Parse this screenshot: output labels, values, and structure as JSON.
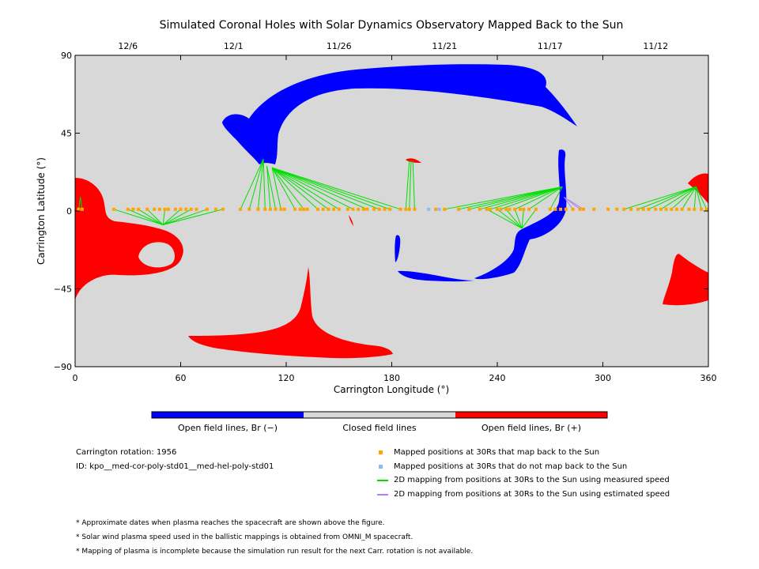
{
  "chart_data": {
    "type": "scatter",
    "title": "Simulated Coronal Holes with Solar Dynamics Observatory Mapped Back to the Sun",
    "xlabel": "Carrington Longitude (°)",
    "ylabel": "Carrington Latitude (°)",
    "xlim": [
      0,
      360
    ],
    "ylim": [
      -90,
      90
    ],
    "xticks": [
      "0",
      "60",
      "120",
      "180",
      "240",
      "300",
      "360"
    ],
    "yticks": [
      "90",
      "45",
      "0",
      "−45",
      "−90"
    ],
    "top_dates": [
      {
        "label": "12/6",
        "lon": 30
      },
      {
        "label": "12/1",
        "lon": 90
      },
      {
        "label": "11/26",
        "lon": 150
      },
      {
        "label": "11/21",
        "lon": 210
      },
      {
        "label": "11/17",
        "lon": 270
      },
      {
        "label": "11/12",
        "lon": 330
      }
    ],
    "background_color": "#d8d8d8",
    "colors": {
      "open_negative": "#0000ff",
      "closed": "#d8d8d8",
      "open_positive": "#ff0000",
      "mapped": "#ffa500",
      "unmapped": "#87bdf0",
      "measured_speed": "#00e000",
      "estimated_speed": "#b07ff0"
    },
    "series": [
      {
        "name": "Mapped positions at 30Rs that map back to the Sun",
        "lon": [
          2,
          4,
          22,
          30,
          33,
          36,
          41,
          45,
          48,
          51,
          53,
          57,
          60,
          63,
          66,
          69,
          75,
          80,
          84,
          94,
          99,
          104,
          108,
          111,
          114,
          117,
          119,
          125,
          128,
          130,
          132,
          138,
          141,
          144,
          147,
          150,
          155,
          158,
          161,
          164,
          166,
          170,
          173,
          176,
          179,
          185,
          188,
          190,
          193,
          205,
          210,
          218,
          224,
          230,
          234,
          236,
          240,
          242,
          245,
          247,
          250,
          253,
          255,
          258,
          262,
          270,
          273,
          276,
          279,
          283,
          287,
          289,
          295,
          303,
          308,
          312,
          316,
          320,
          323,
          326,
          330,
          333,
          336,
          339,
          342,
          345,
          349,
          352,
          356,
          359
        ],
        "lat": [
          1,
          1,
          1,
          1,
          1,
          1,
          1,
          1,
          1,
          1,
          1,
          1,
          1,
          1,
          1,
          1,
          1,
          1,
          1,
          1,
          1,
          1,
          1,
          1,
          1,
          1,
          1,
          1,
          1,
          1,
          1,
          1,
          1,
          1,
          1,
          1,
          1,
          1,
          1,
          1,
          1,
          1,
          1,
          1,
          1,
          1,
          1,
          1,
          1,
          1,
          1,
          1,
          1,
          1,
          1,
          1,
          1,
          1,
          1,
          1,
          1,
          1,
          1,
          1,
          1,
          1,
          1,
          1,
          1,
          1,
          1,
          1,
          1,
          1,
          1,
          1,
          1,
          1,
          1,
          1,
          1,
          1,
          1,
          1,
          1,
          1,
          1,
          1,
          1,
          1
        ]
      },
      {
        "name": "Mapped positions at 30Rs that do not map back to the Sun",
        "lon": [
          201,
          207
        ],
        "lat": [
          1,
          1
        ]
      },
      {
        "name": "2D mapping from positions at 30Rs to the Sun using measured speed",
        "segments": [
          [
            2,
            1,
            3,
            8
          ],
          [
            4,
            1,
            3,
            8
          ],
          [
            22,
            1,
            50,
            -8
          ],
          [
            30,
            1,
            50,
            -8
          ],
          [
            36,
            1,
            50,
            -8
          ],
          [
            41,
            1,
            50,
            -8
          ],
          [
            51,
            1,
            50,
            -8
          ],
          [
            60,
            1,
            50,
            -8
          ],
          [
            66,
            1,
            50,
            -8
          ],
          [
            75,
            1,
            50,
            -8
          ],
          [
            84,
            1,
            50,
            -8
          ],
          [
            94,
            1,
            107,
            30
          ],
          [
            99,
            1,
            107,
            30
          ],
          [
            104,
            1,
            107,
            30
          ],
          [
            108,
            1,
            107,
            30
          ],
          [
            111,
            1,
            109,
            26
          ],
          [
            114,
            1,
            109,
            26
          ],
          [
            117,
            1,
            112,
            25
          ],
          [
            125,
            1,
            112,
            25
          ],
          [
            130,
            1,
            112,
            25
          ],
          [
            138,
            1,
            112,
            25
          ],
          [
            144,
            1,
            112,
            25
          ],
          [
            150,
            1,
            112,
            25
          ],
          [
            158,
            1,
            112,
            25
          ],
          [
            166,
            1,
            112,
            25
          ],
          [
            173,
            1,
            112,
            25
          ],
          [
            179,
            1,
            112,
            25
          ],
          [
            185,
            1,
            112,
            25
          ],
          [
            188,
            1,
            190,
            29
          ],
          [
            190,
            1,
            191,
            29
          ],
          [
            193,
            1,
            192,
            29
          ],
          [
            210,
            1,
            277,
            14
          ],
          [
            218,
            1,
            277,
            14
          ],
          [
            224,
            1,
            277,
            14
          ],
          [
            230,
            1,
            277,
            14
          ],
          [
            236,
            1,
            277,
            14
          ],
          [
            242,
            1,
            277,
            14
          ],
          [
            250,
            1,
            277,
            14
          ],
          [
            258,
            1,
            277,
            14
          ],
          [
            270,
            1,
            277,
            14
          ],
          [
            234,
            1,
            254,
            -10
          ],
          [
            240,
            1,
            254,
            -10
          ],
          [
            245,
            1,
            254,
            -10
          ],
          [
            250,
            1,
            254,
            -10
          ],
          [
            255,
            1,
            254,
            -10
          ],
          [
            262,
            1,
            254,
            -10
          ],
          [
            312,
            1,
            353,
            14
          ],
          [
            320,
            1,
            353,
            14
          ],
          [
            326,
            1,
            353,
            14
          ],
          [
            333,
            1,
            353,
            14
          ],
          [
            339,
            1,
            353,
            14
          ],
          [
            345,
            1,
            353,
            14
          ],
          [
            352,
            1,
            353,
            14
          ],
          [
            356,
            1,
            353,
            14
          ],
          [
            359,
            1,
            353,
            14
          ]
        ]
      },
      {
        "name": "2D mapping from positions at 30Rs to the Sun using estimated speed",
        "segments": [
          [
            283,
            1,
            278,
            8
          ],
          [
            287,
            1,
            278,
            8
          ],
          [
            289,
            1,
            278,
            8
          ]
        ]
      }
    ],
    "colorbar": [
      "Open field lines, Br (−)",
      "Closed field lines",
      "Open field lines, Br (+)"
    ]
  },
  "info": {
    "rotation": "Carrington rotation: 1956",
    "id": "ID: kpo__med-cor-poly-std01__med-hel-poly-std01"
  },
  "legend": {
    "mapped": "Mapped positions at 30Rs that map back to the Sun",
    "unmapped": "Mapped positions at 30Rs that do not map back to the Sun",
    "measured": "2D mapping from positions at 30Rs to the Sun using measured speed",
    "estimated": "2D mapping from positions at 30Rs to the Sun using estimated speed"
  },
  "notes": [
    "* Approximate dates when plasma reaches the spacecraft are shown above the figure.",
    "* Solar wind plasma speed used in the ballistic mappings is obtained from OMNI_M spacecraft.",
    "* Mapping of plasma is incomplete because the simulation run result for the next Carr. rotation is not available."
  ]
}
